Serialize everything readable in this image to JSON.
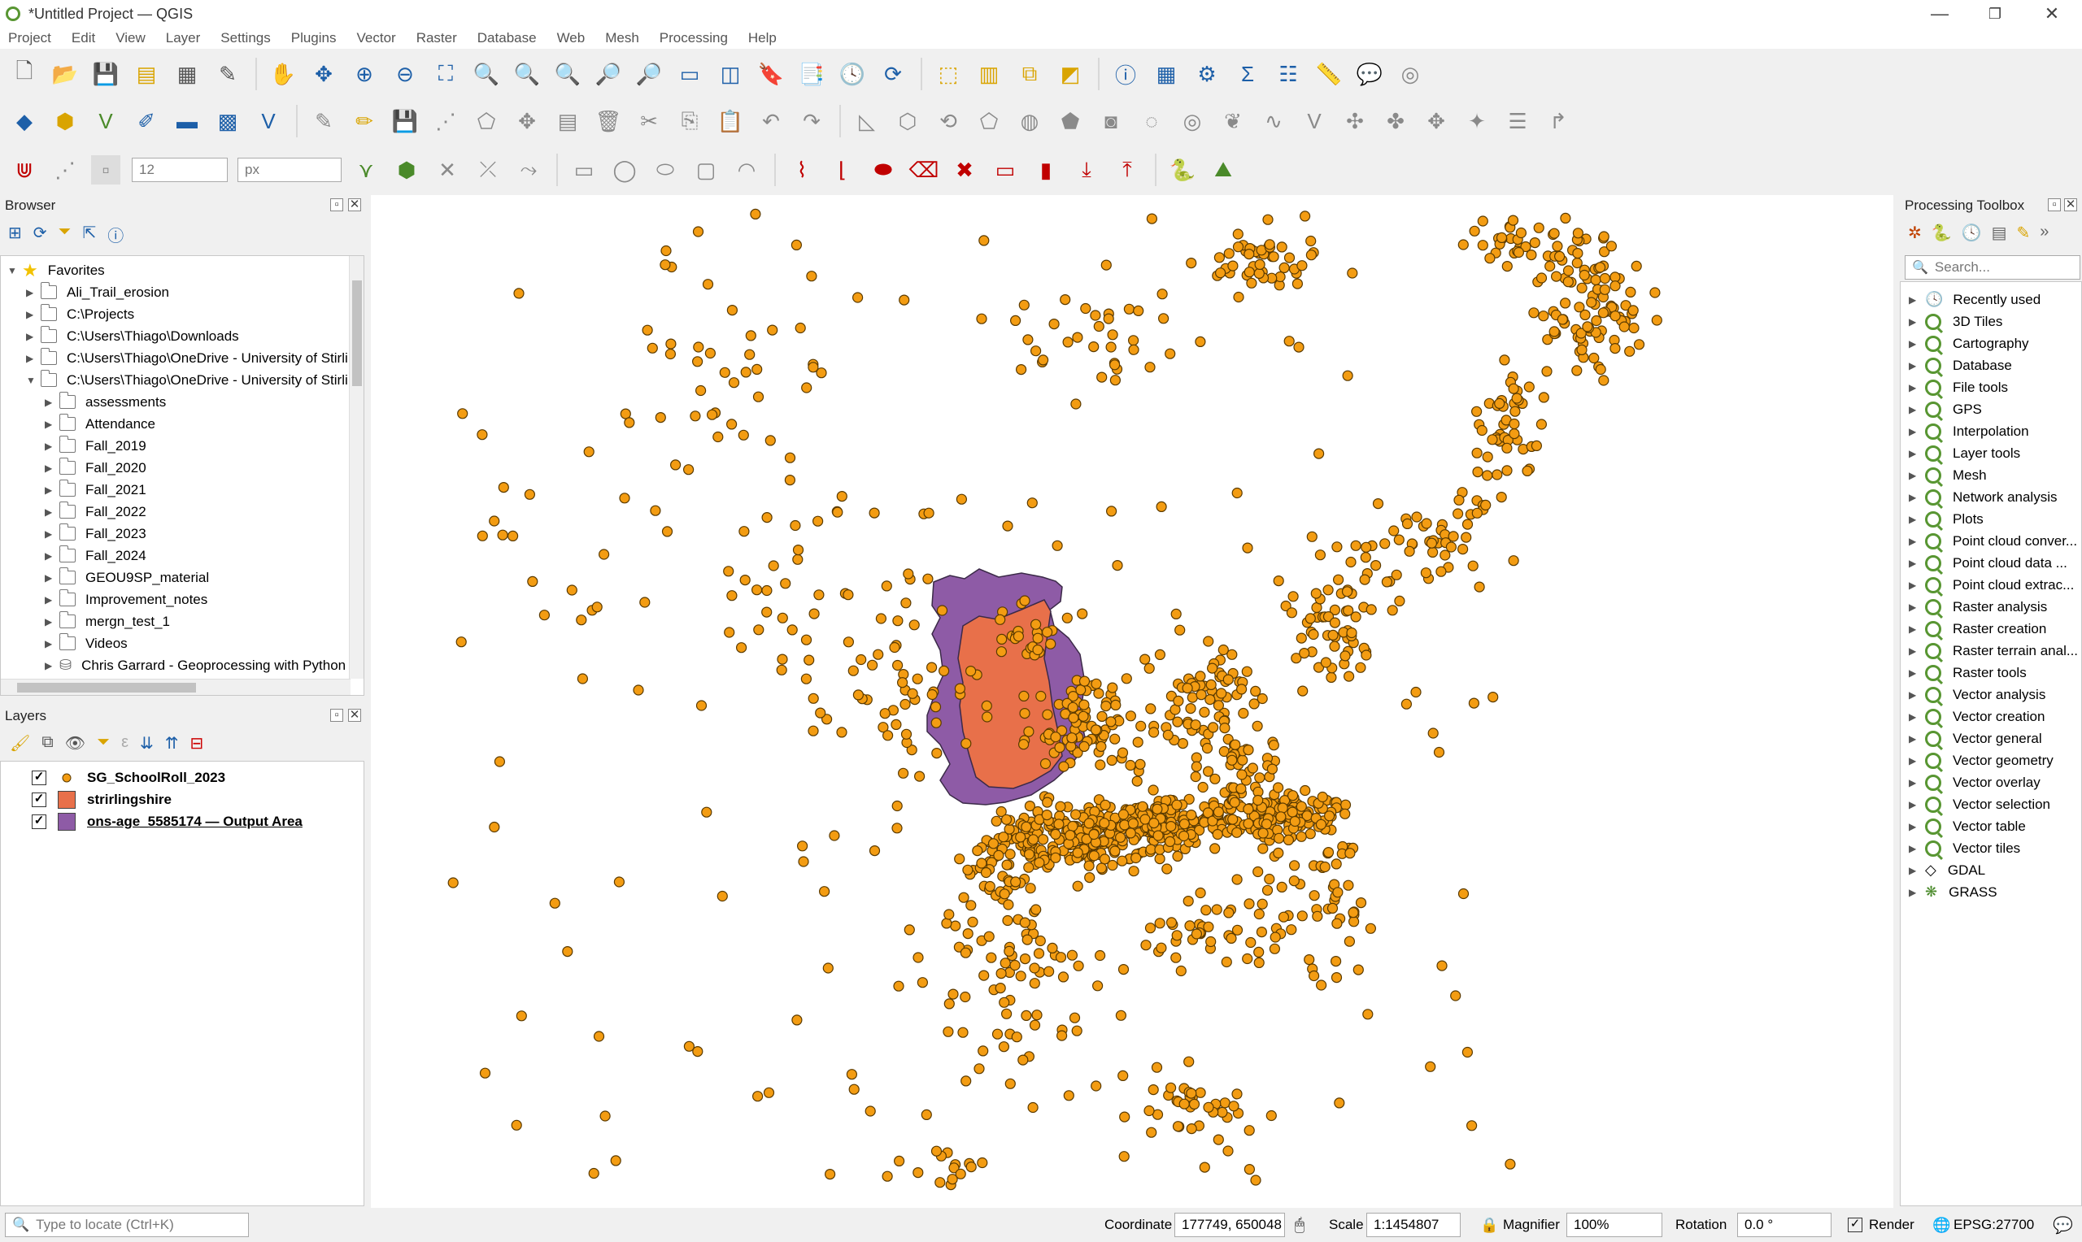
{
  "window": {
    "title": "*Untitled Project — QGIS",
    "minimize": "—",
    "maximize": "❐",
    "close": "✕"
  },
  "menu": [
    "Project",
    "Edit",
    "View",
    "Layer",
    "Settings",
    "Plugins",
    "Vector",
    "Raster",
    "Database",
    "Web",
    "Mesh",
    "Processing",
    "Help"
  ],
  "toolbar_snapping": {
    "size_value": "12",
    "unit_value": "px"
  },
  "browser": {
    "title": "Browser",
    "items": [
      {
        "label": "Favorites",
        "level": 0,
        "expanded": true,
        "icon": "star-icon"
      },
      {
        "label": "Ali_Trail_erosion",
        "level": 1,
        "expanded": false,
        "icon": "folder-icon"
      },
      {
        "label": "C:\\Projects",
        "level": 1,
        "expanded": false,
        "icon": "folder-icon"
      },
      {
        "label": "C:\\Users\\Thiago\\Downloads",
        "level": 1,
        "expanded": false,
        "icon": "folder-icon"
      },
      {
        "label": "C:\\Users\\Thiago\\OneDrive - University of Stirli",
        "level": 1,
        "expanded": false,
        "icon": "folder-icon"
      },
      {
        "label": "C:\\Users\\Thiago\\OneDrive - University of Stirli",
        "level": 1,
        "expanded": true,
        "icon": "folder-icon"
      },
      {
        "label": "assessments",
        "level": 2,
        "expanded": false,
        "icon": "folder-icon"
      },
      {
        "label": "Attendance",
        "level": 2,
        "expanded": false,
        "icon": "folder-icon"
      },
      {
        "label": "Fall_2019",
        "level": 2,
        "expanded": false,
        "icon": "folder-icon"
      },
      {
        "label": "Fall_2020",
        "level": 2,
        "expanded": false,
        "icon": "folder-icon"
      },
      {
        "label": "Fall_2021",
        "level": 2,
        "expanded": false,
        "icon": "folder-icon"
      },
      {
        "label": "Fall_2022",
        "level": 2,
        "expanded": false,
        "icon": "folder-icon"
      },
      {
        "label": "Fall_2023",
        "level": 2,
        "expanded": false,
        "icon": "folder-icon"
      },
      {
        "label": "Fall_2024",
        "level": 2,
        "expanded": false,
        "icon": "folder-icon"
      },
      {
        "label": "GEOU9SP_material",
        "level": 2,
        "expanded": false,
        "icon": "folder-icon"
      },
      {
        "label": "Improvement_notes",
        "level": 2,
        "expanded": false,
        "icon": "folder-icon"
      },
      {
        "label": "mergn_test_1",
        "level": 2,
        "expanded": false,
        "icon": "folder-icon"
      },
      {
        "label": "Videos",
        "level": 2,
        "expanded": false,
        "icon": "folder-icon"
      },
      {
        "label": "Chris Garrard - Geoprocessing with Python",
        "level": 2,
        "expanded": false,
        "icon": "database-icon"
      }
    ]
  },
  "layers": {
    "title": "Layers",
    "items": [
      {
        "label": "SG_SchoolRoll_2023",
        "checked": true,
        "symbol": "point",
        "color": "#f39c12"
      },
      {
        "label": "strirlingshire",
        "checked": true,
        "symbol": "polygon",
        "color": "#e8704a"
      },
      {
        "label": "ons-age_5585174 — Output Area",
        "checked": true,
        "symbol": "polygon",
        "color": "#8e5ba6"
      }
    ]
  },
  "toolbox": {
    "title": "Processing Toolbox",
    "search_placeholder": "Search...",
    "items": [
      "Recently used",
      "3D Tiles",
      "Cartography",
      "Database",
      "File tools",
      "GPS",
      "Interpolation",
      "Layer tools",
      "Mesh",
      "Network analysis",
      "Plots",
      "Point cloud conver...",
      "Point cloud data ...",
      "Point cloud extrac...",
      "Raster analysis",
      "Raster creation",
      "Raster terrain anal...",
      "Raster tools",
      "Vector analysis",
      "Vector creation",
      "Vector general",
      "Vector geometry",
      "Vector overlay",
      "Vector selection",
      "Vector table",
      "Vector tiles",
      "GDAL",
      "GRASS"
    ]
  },
  "map": {
    "point_color": "#f39c12",
    "point_stroke": "#5a3a00",
    "stirling_color": "#e8704a",
    "output_area_color": "#8e5ba6"
  },
  "status": {
    "locate_placeholder": "Type to locate (Ctrl+K)",
    "coordinate_label": "Coordinate",
    "coordinate_value": "177749, 650048",
    "scale_label": "Scale",
    "scale_value": "1:1454807",
    "magnifier_label": "Magnifier",
    "magnifier_value": "100%",
    "rotation_label": "Rotation",
    "rotation_value": "0.0 °",
    "render_label": "Render",
    "crs": "EPSG:27700"
  }
}
